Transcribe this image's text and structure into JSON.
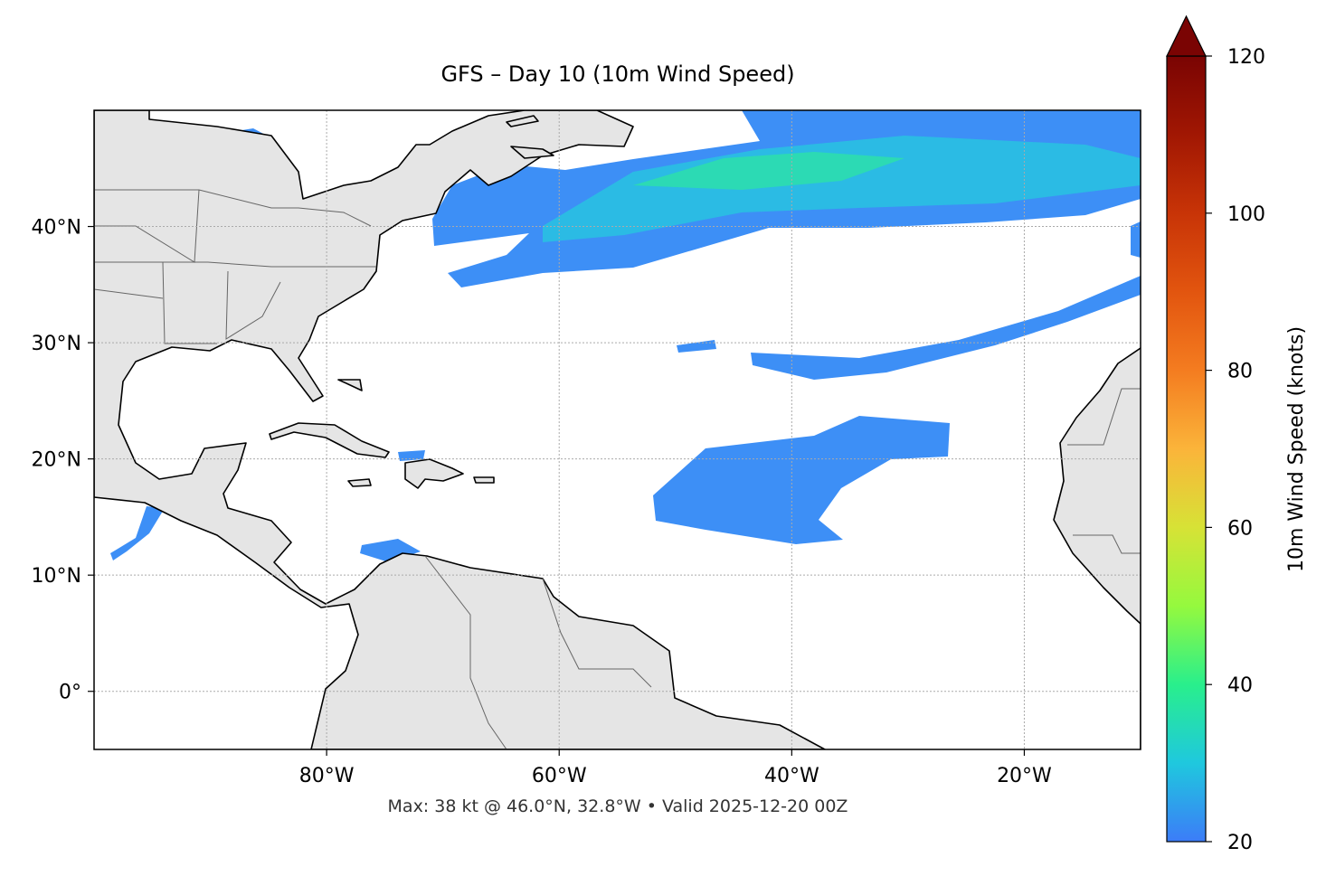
{
  "map": {
    "title": "GFS – Day 10 (10m Wind Speed)",
    "xlim": [
      -100,
      -10
    ],
    "ylim": [
      -5,
      50
    ],
    "xticks": [
      {
        "value": -80,
        "label": "80°W"
      },
      {
        "value": -60,
        "label": "60°W"
      },
      {
        "value": -40,
        "label": "40°W"
      },
      {
        "value": -20,
        "label": "20°W"
      }
    ],
    "yticks": [
      {
        "value": 0,
        "label": "0°"
      },
      {
        "value": 10,
        "label": "10°N"
      },
      {
        "value": 20,
        "label": "20°N"
      },
      {
        "value": 30,
        "label": "30°N"
      },
      {
        "value": 40,
        "label": "40°N"
      }
    ],
    "grid": true,
    "footer": "Max: 38 kt @ 46.0°N, 32.8°W • Valid 2025-12-20 00Z"
  },
  "colorbar": {
    "label": "10m Wind Speed (knots)",
    "lim": [
      20,
      120
    ],
    "ticks": [
      20,
      40,
      60,
      80,
      100,
      120
    ],
    "extend": "max"
  }
}
